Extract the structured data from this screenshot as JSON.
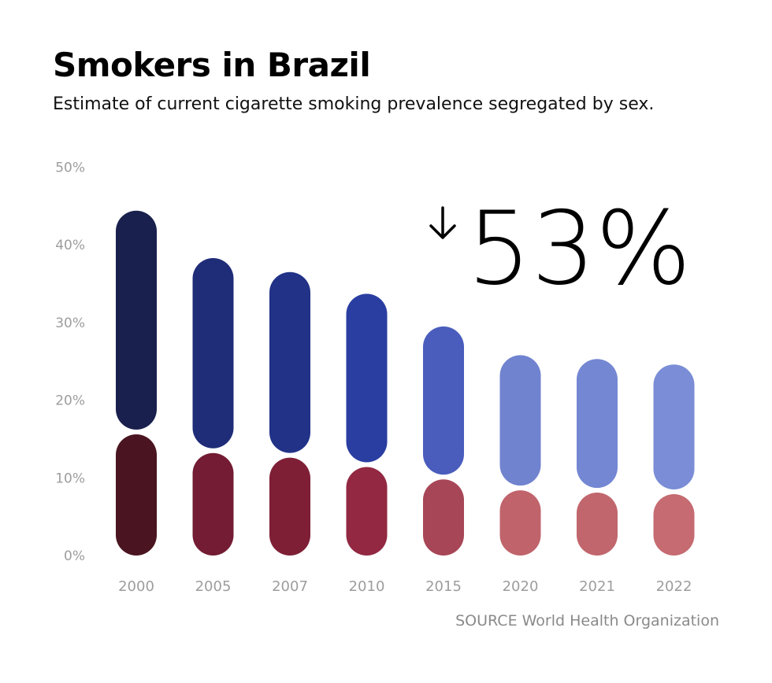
{
  "title": "Smokers in Brazil",
  "subtitle": "Estimate of current cigarette smoking prevalence segregated by sex.",
  "source": "SOURCE World Health Organization",
  "annotation": {
    "arrow": "↓",
    "value": "53%"
  },
  "chart_data": {
    "type": "bar",
    "stacked": true,
    "categories": [
      "2000",
      "2005",
      "2007",
      "2010",
      "2015",
      "2020",
      "2021",
      "2022"
    ],
    "series": [
      {
        "values": [
          15.6,
          13.2,
          12.6,
          11.4,
          9.8,
          8.4,
          8.1,
          7.9
        ],
        "colors": [
          "#4a1520",
          "#731c33",
          "#7e1f36",
          "#922841",
          "#a74657",
          "#c0636b",
          "#c1666d",
          "#c56b71"
        ]
      },
      {
        "values": [
          28.8,
          25.1,
          23.9,
          22.3,
          19.7,
          17.4,
          17.2,
          16.7
        ],
        "colors": [
          "#19204d",
          "#1f2c78",
          "#213287",
          "#2a3ea1",
          "#4a5dbd",
          "#7083cf",
          "#7487d3",
          "#7a8dd6"
        ]
      }
    ],
    "ylim": [
      0,
      50
    ],
    "yticks": [
      "0%",
      "10%",
      "20%",
      "30%",
      "40%",
      "50%"
    ],
    "grid": false,
    "legend": "none"
  }
}
